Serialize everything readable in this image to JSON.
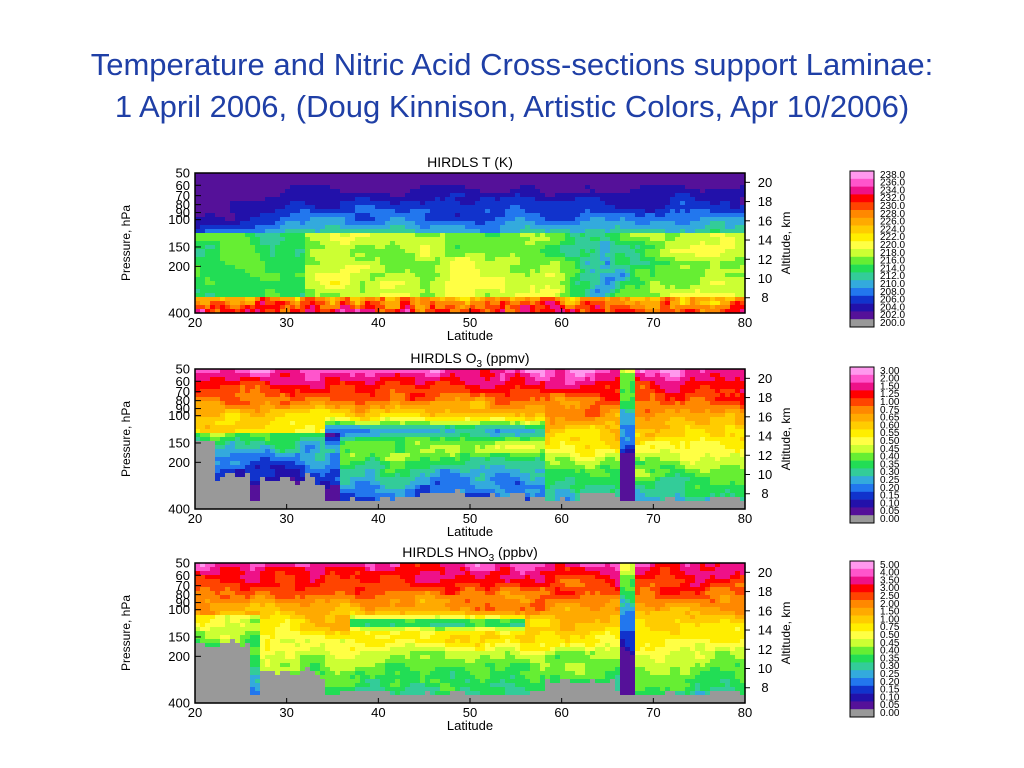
{
  "slide": {
    "title_line1": "Temperature and Nitric Acid Cross-sections support Laminae:",
    "title_line2": "1 April 2006, (Doug Kinnison, Artistic Colors, Apr 10/2006)"
  },
  "chart_data": [
    {
      "type": "heatmap",
      "title_main": "HIRDLS T (K)",
      "title_prefix": "HIRDLS T (K)",
      "title_sub": "",
      "title_suffix": "",
      "xlabel": "Latitude",
      "ylabel": "Pressure, hPa",
      "y2label": "Altitude, km",
      "xlim": [
        20,
        80
      ],
      "x_ticks": [
        20,
        30,
        40,
        50,
        60,
        70,
        80
      ],
      "y_ticks": [
        "50",
        "60",
        "70",
        "80",
        "90",
        "100",
        "150",
        "200",
        "400"
      ],
      "y_tick_values": [
        50,
        60,
        70,
        80,
        90,
        100,
        150,
        200,
        400
      ],
      "ylim": [
        50,
        400
      ],
      "y_scale": "log",
      "y2_ticks": [
        "20",
        "18",
        "16",
        "14",
        "12",
        "10",
        "8"
      ],
      "colorbar_labels": [
        "238.0",
        "236.0",
        "234.0",
        "232.0",
        "230.0",
        "228.0",
        "226.0",
        "224.0",
        "222.0",
        "220.0",
        "218.0",
        "216.0",
        "214.0",
        "212.0",
        "210.0",
        "208.0",
        "206.0",
        "204.0",
        "202.0",
        "200.0"
      ],
      "colorbar_colors": [
        "#ff99ee",
        "#ff55cc",
        "#ee1188",
        "#ff0000",
        "#ff4400",
        "#ff8800",
        "#ffaa00",
        "#ffcc00",
        "#ffee00",
        "#ffff44",
        "#ccff33",
        "#66ee33",
        "#22dd55",
        "#33cc99",
        "#33aadd",
        "#2277ee",
        "#1133cc",
        "#2211aa",
        "#551199",
        "#999999"
      ],
      "field": "temperature"
    },
    {
      "type": "heatmap",
      "title_main": "",
      "title_prefix": "HIRDLS O",
      "title_sub": "3",
      "title_suffix": " (ppmv)",
      "xlabel": "Latitude",
      "ylabel": "Pressure, hPa",
      "y2label": "Altitude, km",
      "xlim": [
        20,
        80
      ],
      "x_ticks": [
        20,
        30,
        40,
        50,
        60,
        70,
        80
      ],
      "y_ticks": [
        "50",
        "60",
        "70",
        "80",
        "90",
        "100",
        "150",
        "200",
        "400"
      ],
      "y_tick_values": [
        50,
        60,
        70,
        80,
        90,
        100,
        150,
        200,
        400
      ],
      "ylim": [
        50,
        400
      ],
      "y_scale": "log",
      "y2_ticks": [
        "20",
        "18",
        "16",
        "14",
        "12",
        "10",
        "8"
      ],
      "colorbar_labels": [
        "3.00",
        "2.00",
        "1.50",
        "1.25",
        "1.00",
        "0.75",
        "0.65",
        "0.60",
        "0.55",
        "0.50",
        "0.45",
        "0.40",
        "0.35",
        "0.30",
        "0.25",
        "0.20",
        "0.15",
        "0.10",
        "0.05",
        "0.00"
      ],
      "colorbar_colors": [
        "#ff99ee",
        "#ff55cc",
        "#ee1188",
        "#ff0000",
        "#ff4400",
        "#ff8800",
        "#ffaa00",
        "#ffcc00",
        "#ffee00",
        "#ffff44",
        "#ccff33",
        "#66ee33",
        "#22dd55",
        "#33cc99",
        "#33aadd",
        "#2277ee",
        "#1133cc",
        "#2211aa",
        "#551199",
        "#999999"
      ],
      "field": "ozone"
    },
    {
      "type": "heatmap",
      "title_main": "",
      "title_prefix": "HIRDLS HNO",
      "title_sub": "3",
      "title_suffix": " (ppbv)",
      "xlabel": "Latitude",
      "ylabel": "Pressure, hPa",
      "y2label": "Altitude, km",
      "xlim": [
        20,
        80
      ],
      "x_ticks": [
        20,
        30,
        40,
        50,
        60,
        70,
        80
      ],
      "y_ticks": [
        "50",
        "60",
        "70",
        "80",
        "90",
        "100",
        "150",
        "200",
        "400"
      ],
      "y_tick_values": [
        50,
        60,
        70,
        80,
        90,
        100,
        150,
        200,
        400
      ],
      "ylim": [
        50,
        400
      ],
      "y_scale": "log",
      "y2_ticks": [
        "20",
        "18",
        "16",
        "14",
        "12",
        "10",
        "8"
      ],
      "colorbar_labels": [
        "5.00",
        "4.00",
        "3.50",
        "3.00",
        "2.50",
        "2.00",
        "1.50",
        "1.00",
        "0.75",
        "0.50",
        "0.45",
        "0.40",
        "0.35",
        "0.30",
        "0.25",
        "0.20",
        "0.15",
        "0.10",
        "0.05",
        "0.00"
      ],
      "colorbar_colors": [
        "#ff99ee",
        "#ff55cc",
        "#ee1188",
        "#ff0000",
        "#ff4400",
        "#ff8800",
        "#ffaa00",
        "#ffcc00",
        "#ffee00",
        "#ffff44",
        "#ccff33",
        "#66ee33",
        "#22dd55",
        "#33cc99",
        "#33aadd",
        "#2277ee",
        "#1133cc",
        "#2211aa",
        "#551199",
        "#999999"
      ],
      "field": "nitric_acid"
    }
  ]
}
